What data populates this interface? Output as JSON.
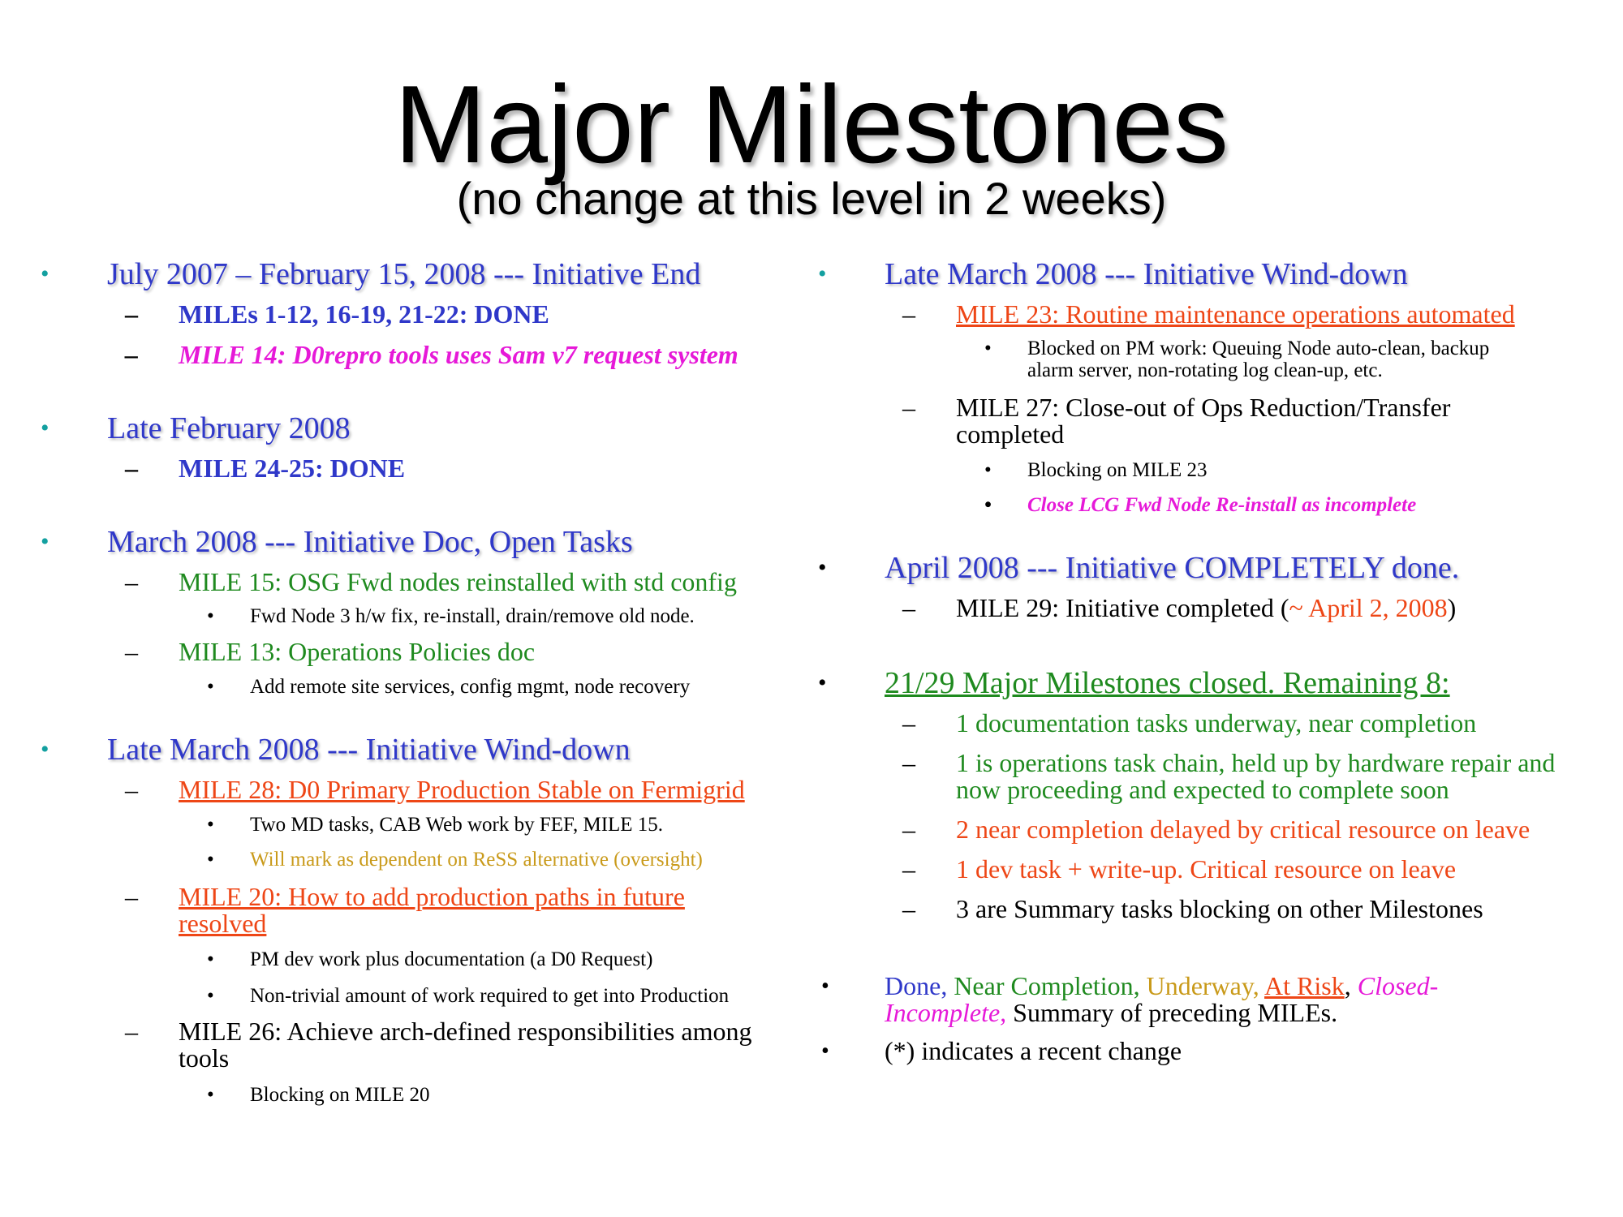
{
  "title": "Major Milestones",
  "subtitle": "(no change at this level in 2 weeks)",
  "left": {
    "g1": {
      "head": "July 2007 – February 15, 2008 --- Initiative End",
      "i1": "MILEs 1-12, 16-19, 21-22: DONE",
      "i2": "MILE 14: D0repro tools uses Sam v7 request system"
    },
    "g2": {
      "head": "Late February 2008",
      "i1": "MILE 24-25: DONE"
    },
    "g3": {
      "head": "March 2008 --- Initiative Doc, Open Tasks",
      "i1": "MILE 15: OSG Fwd nodes reinstalled with std config",
      "i1_sub": "Fwd Node 3 h/w fix, re-install, drain/remove old node.",
      "i2": "MILE 13: Operations Policies doc",
      "i2_sub": "Add remote site services, config mgmt, node recovery"
    },
    "g4": {
      "head": "Late March 2008 --- Initiative Wind-down",
      "i1": "MILE 28: D0 Primary Production Stable on Fermigrid",
      "i1_sub1": "Two MD tasks, CAB Web work by FEF, MILE 15.",
      "i1_sub2": "Will mark as dependent on ReSS alternative (oversight)",
      "i2a": "MILE 20: How to add production paths in future",
      "i2b": "resolved",
      "i2_sub1": "PM dev work plus documentation (a D0 Request)",
      "i2_sub2": "Non-trivial amount of work required to get into Production",
      "i3a": "MILE 26: Achieve arch-defined responsibilities among",
      "i3b": "tools",
      "i3_sub": "Blocking on MILE 20"
    }
  },
  "right": {
    "g1": {
      "head": "Late March 2008 --- Initiative Wind-down",
      "i1": "MILE 23: Routine maintenance operations automated",
      "i1_sub_a": "Blocked on PM work: Queuing Node auto-clean, backup",
      "i1_sub_b": "alarm server, non-rotating log clean-up, etc.",
      "i2a": "MILE 27: Close-out of Ops Reduction/Transfer",
      "i2b": "completed",
      "i2_sub1": "Blocking on MILE 23",
      "i2_sub2": "Close LCG Fwd Node Re-install as incomplete"
    },
    "g2": {
      "head": "April 2008 --- Initiative COMPLETELY done.",
      "i1_pre": "MILE 29: Initiative completed (",
      "i1_date": "~ April 2, 2008",
      "i1_post": ")"
    },
    "g3": {
      "head": "21/29 Major Milestones closed. Remaining 8:",
      "i1": "1 documentation tasks underway, near completion",
      "i2a": "1 is operations task chain, held up by hardware repair and",
      "i2b": "now proceeding and expected to complete soon",
      "i3": "2 near completion delayed by critical resource on leave",
      "i4": "1 dev task + write-up. Critical resource on leave",
      "i5": "3 are Summary tasks blocking on other Milestones"
    },
    "legend": {
      "done": "Done,",
      "near": "Near Completion,",
      "underway": "Underway,",
      "atrisk": "At Risk",
      "comma": ",",
      "closed_a": "Closed-",
      "closed_b": "Incomplete,",
      "summary": "Summary of preceding MILEs.",
      "note": "(*) indicates a recent change"
    }
  },
  "symbols": {
    "bullet": "•",
    "dash": "–"
  },
  "colors": {
    "blue": "#2f38c9",
    "teal_bullet": "#13a0a0",
    "magenta": "#e619d8",
    "green": "#1f8a1f",
    "red": "#ee4616",
    "olive": "#c99a1a"
  }
}
